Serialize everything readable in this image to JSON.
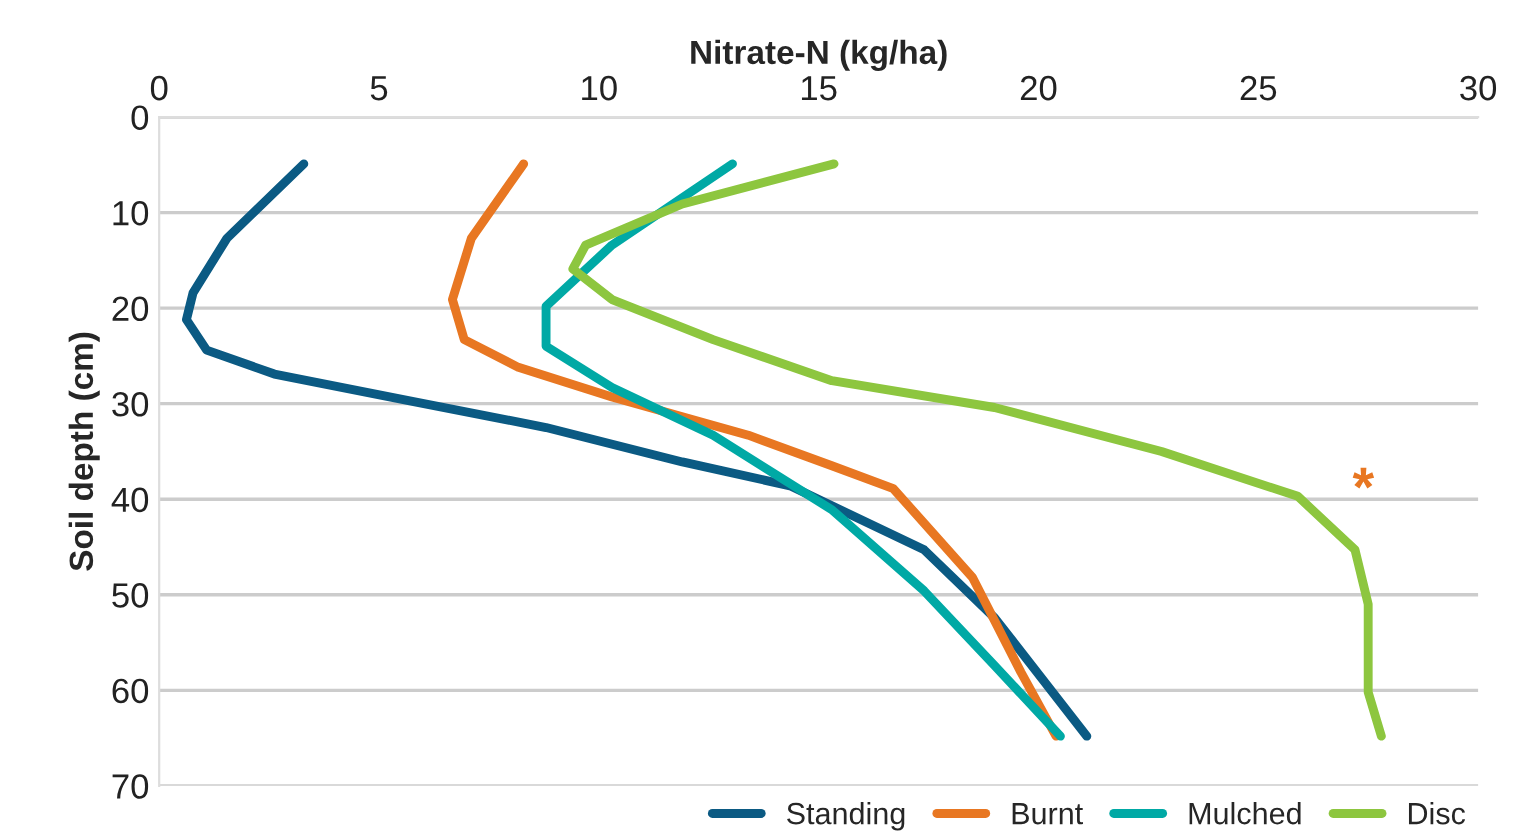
{
  "chart_data": {
    "type": "line",
    "xlabel": "Nitrate-N (kg/ha)",
    "ylabel": "Soil depth (cm)",
    "xlim": [
      0,
      30
    ],
    "xticks": [
      0,
      5,
      10,
      15,
      20,
      25,
      30
    ],
    "ylim": [
      70,
      0
    ],
    "yticks": [
      0,
      10,
      20,
      30,
      40,
      50,
      60,
      70
    ],
    "grid": "y",
    "legend": "bottom right",
    "line_style": "solid",
    "marker": "none",
    "series": [
      {
        "name": "Standing",
        "color": "#0b5a83",
        "x": [
          3.29,
          1.54,
          0.77,
          0.62,
          1.08,
          2.62,
          5.7,
          8.8,
          11.9,
          14.35,
          17.4,
          19.0,
          21.1
        ],
        "values": [
          4.9,
          12.7,
          18.4,
          21.2,
          24.4,
          26.9,
          29.7,
          32.5,
          36.1,
          38.6,
          45.3,
          52.4,
          64.8
        ]
      },
      {
        "name": "Burnt",
        "color": "#e87722",
        "x": [
          8.29,
          7.1,
          6.67,
          6.94,
          8.17,
          10.3,
          13.4,
          15.3,
          16.7,
          18.5,
          19.6,
          20.4
        ],
        "values": [
          4.9,
          12.7,
          19.1,
          23.3,
          26.2,
          29.3,
          33.3,
          36.5,
          38.9,
          48.2,
          58.1,
          64.8
        ]
      },
      {
        "name": "Mulched",
        "color": "#00a9a5",
        "x": [
          13.04,
          10.3,
          8.8,
          8.8,
          10.3,
          12.6,
          15.3,
          17.4,
          19.0,
          20.5
        ],
        "values": [
          4.9,
          13.4,
          19.8,
          24.0,
          28.3,
          33.3,
          41.1,
          49.6,
          57.4,
          64.8
        ]
      },
      {
        "name": "Disc",
        "color": "#8dc63f",
        "x": [
          15.35,
          11.9,
          9.7,
          9.41,
          10.3,
          12.6,
          15.3,
          19.0,
          22.8,
          25.9,
          27.2,
          27.5,
          27.5,
          27.8
        ],
        "values": [
          4.9,
          9.1,
          13.4,
          15.9,
          19.1,
          23.3,
          27.6,
          30.4,
          35.0,
          39.7,
          45.3,
          51.0,
          60.2,
          64.8
        ]
      }
    ],
    "annotations": [
      "*"
    ]
  }
}
